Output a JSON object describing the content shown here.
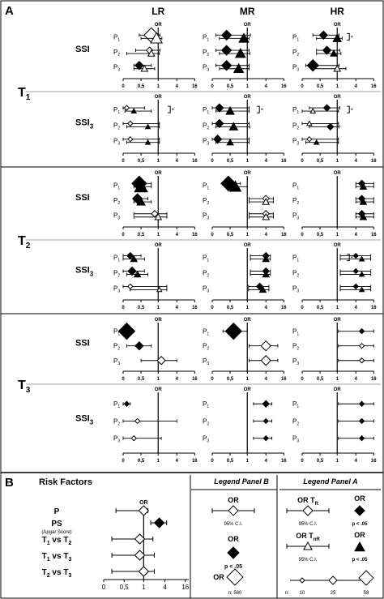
{
  "panel_a": {
    "label": "A",
    "columns": [
      "LR",
      "MR",
      "HR"
    ],
    "or_header": "OR",
    "ticks": [
      "0",
      "0,5",
      "1",
      "4",
      "16"
    ],
    "sections": [
      {
        "t": "T",
        "t_sub": "1",
        "rows": [
          {
            "label": "SSI",
            "label_sub": "",
            "cells": [
              {
                "p": [
                  {
                    "est": 0.8,
                    "lo": 0.45,
                    "hi": 1.3,
                    "m": "ow",
                    "s": 9
                  },
                  {
                    "est": 0.9,
                    "lo": 0.5,
                    "hi": 1.6,
                    "m": "ot",
                    "s": 7
                  }
                ],
                "bracket": false
              },
              {
                "p": [
                  {
                    "est": 0.8,
                    "lo": 0.4,
                    "hi": 1.3,
                    "m": "od",
                    "s": 4
                  },
                  {
                    "est": 0.75,
                    "lo": 0.1,
                    "hi": 1.2,
                    "m": "ot",
                    "s": 4
                  }
                ],
                "bracket": false
              },
              {
                "p": [
                  {
                    "est": 0.5,
                    "lo": 0.3,
                    "hi": 0.8,
                    "m": "fd",
                    "s": 6
                  },
                  {
                    "est": 0.6,
                    "lo": 0.3,
                    "hi": 0.9,
                    "m": "ft",
                    "s": 4
                  }
                ],
                "bracket": true
              }
            ]
          },
          {
            "cells": [
              {
                "p": [
                  {
                    "est": 0.45,
                    "lo": 0.1,
                    "hi": 1.8,
                    "m": "fd",
                    "s": 5
                  },
                  {
                    "est": 0.8,
                    "lo": 0.2,
                    "hi": 1.8,
                    "m": "ft",
                    "s": 5
                  }
                ],
                "bracket": true
              },
              {
                "p": [
                  {
                    "est": 0.35,
                    "lo": 0.1,
                    "hi": 1.5,
                    "m": "fd",
                    "s": 5
                  },
                  {
                    "est": 0.8,
                    "lo": 0.3,
                    "hi": 1.3,
                    "m": "ft",
                    "s": 5
                  }
                ],
                "bracket": true
              },
              {
                "p": [
                  {
                    "est": 0.35,
                    "lo": 0.1,
                    "hi": 1.4,
                    "m": "fd",
                    "s": 6
                  },
                  {
                    "est": 0.75,
                    "lo": 0.2,
                    "hi": 1.3,
                    "m": "ft",
                    "s": 5
                  }
                ],
                "bracket": true
              }
            ]
          },
          {
            "cells": [
              {
                "p": [
                  {
                    "est": 0.7,
                    "lo": 0.3,
                    "hi": 1.3,
                    "m": "fd",
                    "s": 5
                  },
                  {
                    "est": 0.9,
                    "lo": 0.4,
                    "hi": 2.0,
                    "m": "ft",
                    "s": 5
                  }
                ],
                "bracket": false
              },
              {
                "p": [
                  {
                    "est": 0.7,
                    "lo": 0.4,
                    "hi": 1.4,
                    "m": "fd",
                    "s": 5
                  },
                  {
                    "est": 0.9,
                    "lo": 0.4,
                    "hi": 1.8,
                    "m": "ft",
                    "s": 5
                  }
                ],
                "bracket": false
              },
              {
                "p": [
                  {
                    "est": 0.6,
                    "lo": 0.3,
                    "hi": 1.4,
                    "m": "fd",
                    "s": 6
                  },
                  {
                    "est": 1.0,
                    "lo": 0.3,
                    "hi": 2.4,
                    "m": "ot",
                    "s": 4
                  }
                ],
                "bracket": false
              }
            ]
          }
        ]
      }
    ]
  },
  "panel_b": {
    "label": "B",
    "title": "Risk Factors",
    "rows": [
      {
        "label": "P",
        "sub": "",
        "est": 1.0,
        "lo": 0.3,
        "hi": 1.6,
        "m": "od"
      },
      {
        "label": "PS",
        "sub": "",
        "est": 3.2,
        "lo": 2.0,
        "hi": 5.0,
        "m": "fd"
      },
      {
        "label": "T",
        "sub": "1",
        "label2": " vs T",
        "sub2": "2",
        "est": 0.9,
        "lo": 0.2,
        "hi": 2.3,
        "m": "od"
      },
      {
        "label": "T",
        "sub": "1",
        "label2": " vs T",
        "sub2": "3",
        "est": 0.9,
        "lo": 0.2,
        "hi": 2.5,
        "m": "od"
      },
      {
        "label": "T",
        "sub": "2",
        "label2": " vs T",
        "sub2": "3",
        "est": 1.0,
        "lo": 0.2,
        "hi": 2.5,
        "m": "od"
      }
    ],
    "ps_note": "(Apgar Score)",
    "or_header": "OR",
    "ticks": [
      "0",
      "0,5",
      "1",
      "4",
      "16"
    ]
  },
  "legend_b": {
    "title": "Legend Panel B",
    "or1": "OR",
    "ci": "95% C.I.",
    "or2": "OR",
    "p": "p < .05",
    "or3": "OR",
    "n": "n:  580"
  },
  "legend_a": {
    "title": "Legend Panel A",
    "or_tr": "OR T",
    "or_tr_sub": "R",
    "ci1": "95% C.I.",
    "or_a": "OR",
    "p1": "p < .05",
    "or_tnr": "OR T",
    "or_tnr_sub": "nR",
    "ci2": "95% C.I.",
    "or_b": "OR",
    "p2": "p < .05",
    "n_label": "n:",
    "n_vals": [
      "10",
      "25",
      "58"
    ]
  },
  "colors": {
    "line": "#000000",
    "bg": "#ffffff",
    "sep": "#777777"
  }
}
